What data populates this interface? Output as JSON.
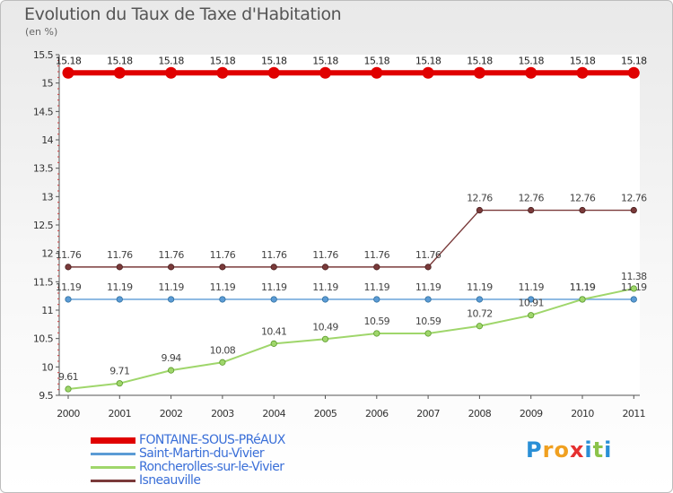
{
  "title": "Evolution du Taux de Taxe d'Habitation",
  "unit": "(en %)",
  "logo": {
    "letters": [
      "P",
      "r",
      "o",
      "x",
      "i",
      "t",
      "i"
    ],
    "colors": [
      "#2a8fd6",
      "#f0a020",
      "#f0a020",
      "#e53030",
      "#2a8fd6",
      "#8bc34a",
      "#2a8fd6"
    ]
  },
  "chart_data": {
    "type": "line",
    "categories": [
      "2000",
      "2001",
      "2002",
      "2003",
      "2004",
      "2005",
      "2006",
      "2007",
      "2008",
      "2009",
      "2010",
      "2011"
    ],
    "ylim": [
      9.5,
      15.5
    ],
    "yticks": [
      "9.5",
      "10",
      "10.5",
      "11",
      "11.5",
      "12",
      "12.5",
      "13",
      "13.5",
      "14",
      "14.5",
      "15",
      "15.5"
    ],
    "grid": false,
    "legend_position": "bottom-left",
    "series": [
      {
        "name": "FONTAINE-SOUS-PRéAUX",
        "color": "#e00000",
        "values": [
          15.18,
          15.18,
          15.18,
          15.18,
          15.18,
          15.18,
          15.18,
          15.18,
          15.18,
          15.18,
          15.18,
          15.18
        ],
        "labels": [
          "15.18",
          "15.18",
          "15.18",
          "15.18",
          "15.18",
          "15.18",
          "15.18",
          "15.18",
          "15.18",
          "15.18",
          "15.18",
          "15.18"
        ]
      },
      {
        "name": "Saint-Martin-du-Vivier",
        "color": "#5b9bd5",
        "values": [
          11.19,
          11.19,
          11.19,
          11.19,
          11.19,
          11.19,
          11.19,
          11.19,
          11.19,
          11.19,
          11.19,
          11.19
        ],
        "labels": [
          "11.19",
          "11.19",
          "11.19",
          "11.19",
          "11.19",
          "11.19",
          "11.19",
          "11.19",
          "11.19",
          "11.19",
          "11.19",
          "11.19"
        ]
      },
      {
        "name": "Roncherolles-sur-le-Vivier",
        "color": "#9fd66b",
        "values": [
          9.61,
          9.71,
          9.94,
          10.08,
          10.41,
          10.49,
          10.59,
          10.59,
          10.72,
          10.91,
          11.19,
          11.38
        ],
        "labels": [
          "9.61",
          "9.71",
          "9.94",
          "10.08",
          "10.41",
          "10.49",
          "10.59",
          "10.59",
          "10.72",
          "10.91",
          "11.19",
          "11.38"
        ]
      },
      {
        "name": "Isneauville",
        "color": "#7a3a3a",
        "values": [
          11.76,
          11.76,
          11.76,
          11.76,
          11.76,
          11.76,
          11.76,
          11.76,
          12.76,
          12.76,
          12.76,
          12.76
        ],
        "labels": [
          "11.76",
          "11.76",
          "11.76",
          "11.76",
          "11.76",
          "11.76",
          "11.76",
          "11.76",
          "12.76",
          "12.76",
          "12.76",
          "12.76"
        ]
      }
    ]
  }
}
